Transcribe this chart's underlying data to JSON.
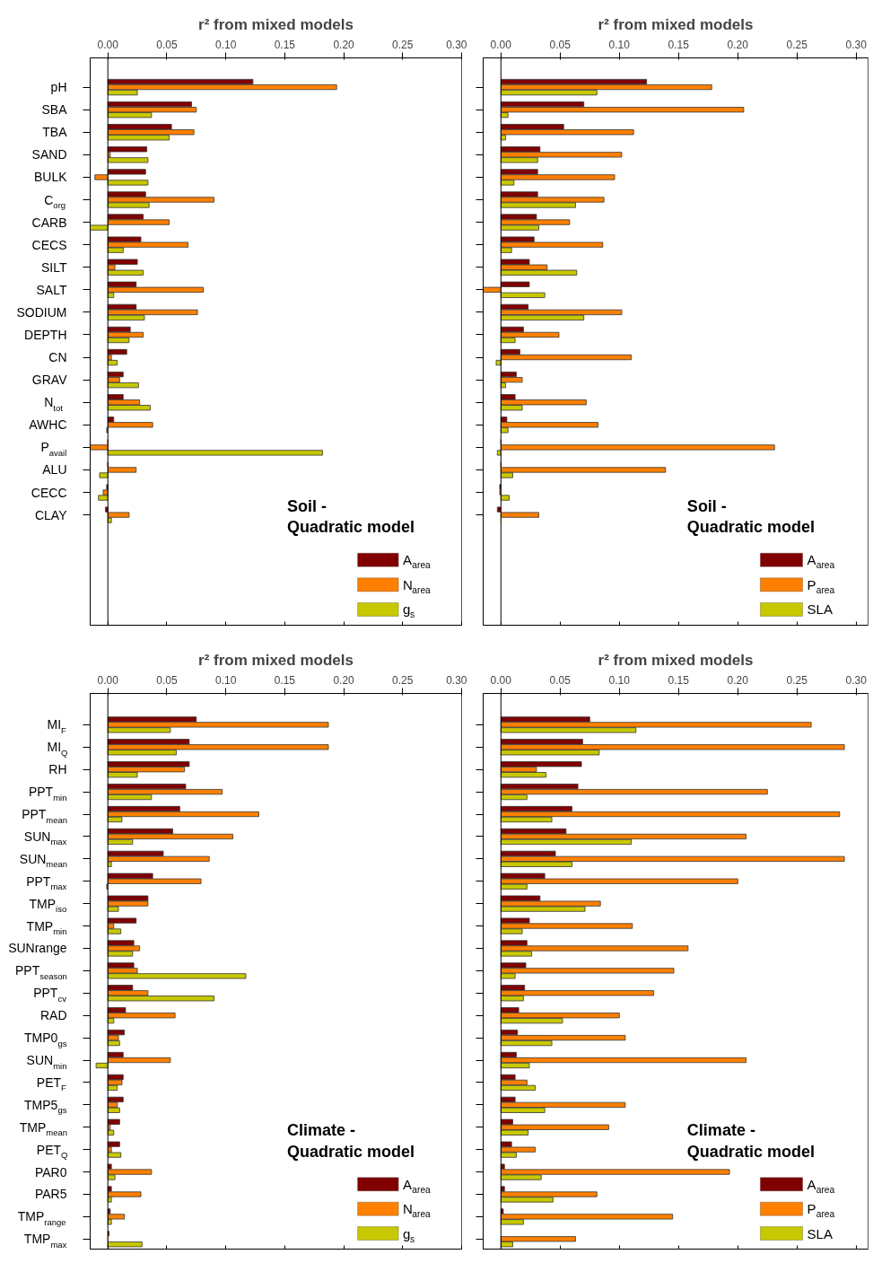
{
  "chart_data": [
    {
      "type": "bar",
      "orientation": "horizontal",
      "title": "r² from mixed models",
      "legend": "bottom right",
      "categories": [
        "pH",
        "SBA",
        "TBA",
        "SAND",
        "BULK",
        "C$_{org}$",
        "CARB",
        "CECS",
        "SILT",
        "SALT",
        "SODIUM",
        "DEPTH",
        "CN",
        "GRAV",
        "N$_{tot}$",
        "AWHC",
        "P$_{avail}$",
        "ALU",
        "CECC",
        "CLAY"
      ],
      "series": [
        {
          "name": "A$_{area}$",
          "color": "#800000",
          "values": [
            0.123,
            0.071,
            0.054,
            0.033,
            0.032,
            0.032,
            0.03,
            0.028,
            0.025,
            0.024,
            0.024,
            0.019,
            0.016,
            0.013,
            0.013,
            0.005,
            0,
            0,
            -0.001,
            -0.002
          ]
        },
        {
          "name": "N$_{area}$",
          "color": "#ff8000",
          "values": [
            0.194,
            0.075,
            0.073,
            0.002,
            -0.011,
            0.09,
            0.052,
            0.068,
            0.006,
            0.081,
            0.076,
            0.03,
            0.003,
            0.01,
            0.027,
            0.038,
            -0.015,
            0.024,
            -0.004,
            0.018
          ]
        },
        {
          "name": "g$_{s}$",
          "color": "#c8c800",
          "values": [
            0.025,
            0.037,
            0.052,
            0.034,
            0.034,
            0.035,
            -0.015,
            0.013,
            0.03,
            0.005,
            0.031,
            0.018,
            0.008,
            0.026,
            0.036,
            -0.001,
            0.182,
            -0.007,
            -0.008,
            0.003
          ]
        }
      ],
      "xlim": [
        -0.015,
        0.3
      ],
      "xticks": [
        {
          "value": 0,
          "label": "0.00"
        },
        {
          "value": 0.05,
          "label": "0.05"
        },
        {
          "value": 0.1,
          "label": "0.10"
        },
        {
          "value": 0.15,
          "label": "0.15"
        },
        {
          "value": 0.2,
          "label": "0.20"
        },
        {
          "value": 0.25,
          "label": "0.25"
        },
        {
          "value": 0.3,
          "label": "0.30"
        }
      ],
      "ref_lines": [
        {
          "axis": "x",
          "value": 0,
          "color": "#000000"
        }
      ],
      "annotations": [
        "Soil -\nQuadratic model"
      ]
    },
    {
      "type": "bar",
      "orientation": "horizontal",
      "title": "r² from mixed models",
      "legend": "bottom right",
      "tick_labels": "x",
      "categories": [
        "pH",
        "SBA",
        "TBA",
        "SAND",
        "BULK",
        "C$_{org}$",
        "CARB",
        "CECS",
        "SILT",
        "SALT",
        "SODIUM",
        "DEPTH",
        "CN",
        "GRAV",
        "N$_{tot}$",
        "AWHC",
        "P$_{avail}$",
        "ALU",
        "CECC",
        "CLAY"
      ],
      "series": [
        {
          "name": "A$_{area}$",
          "color": "#800000",
          "values": [
            0.123,
            0.07,
            0.053,
            0.033,
            0.031,
            0.031,
            0.03,
            0.028,
            0.024,
            0.024,
            0.023,
            0.019,
            0.016,
            0.013,
            0.012,
            0.005,
            0,
            0,
            -0.001,
            -0.003
          ]
        },
        {
          "name": "P$_{area}$",
          "color": "#ff8000",
          "values": [
            0.178,
            0.205,
            0.112,
            0.102,
            0.096,
            0.087,
            0.058,
            0.086,
            0.039,
            -0.015,
            0.102,
            0.049,
            0.11,
            0.018,
            0.072,
            0.082,
            0.231,
            0.139,
            -0.001,
            0.032
          ]
        },
        {
          "name": "SLA",
          "color": "#c8c800",
          "values": [
            0.081,
            0.006,
            0.004,
            0.031,
            0.011,
            0.063,
            0.032,
            0.009,
            0.064,
            0.037,
            0.07,
            0.012,
            -0.004,
            0.004,
            0.018,
            0.006,
            -0.003,
            0.01,
            0.007,
            0
          ]
        }
      ],
      "xlim": [
        -0.015,
        0.31
      ],
      "xticks": [
        {
          "value": 0,
          "label": "0.00"
        },
        {
          "value": 0.05,
          "label": "0.05"
        },
        {
          "value": 0.1,
          "label": "0.10"
        },
        {
          "value": 0.15,
          "label": "0.15"
        },
        {
          "value": 0.2,
          "label": "0.20"
        },
        {
          "value": 0.25,
          "label": "0.25"
        },
        {
          "value": 0.3,
          "label": "0.30"
        }
      ],
      "ref_lines": [
        {
          "axis": "x",
          "value": 0,
          "color": "#000000"
        }
      ],
      "annotations": [
        "Soil -\nQuadratic model"
      ]
    },
    {
      "type": "bar",
      "orientation": "horizontal",
      "title": "r² from mixed models",
      "legend": "bottom right",
      "categories": [
        "MI$_{F}$",
        "MI$_{Q}$",
        "RH",
        "PPT$_{min}$",
        "PPT$_{mean}$",
        "SUN$_{max}$",
        "SUN$_{mean}$",
        "PPT$_{max}$",
        "TMP$_{iso}$",
        "TMP$_{min}$",
        "SUNrange",
        "PPT$_{season}$",
        "PPT$_{cv}$",
        "RAD",
        "TMP0$_{gs}$",
        "SUN$_{min}$",
        "PET$_{F}$",
        "TMP5$_{gs}$",
        "TMP$_{mean}$",
        "PET$_{Q}$",
        "PAR0",
        "PAR5",
        "TMP$_{range}$",
        "TMP$_{max}$"
      ],
      "series": [
        {
          "name": "A$_{area}$",
          "color": "#800000",
          "values": [
            0.075,
            0.069,
            0.069,
            0.066,
            0.061,
            0.055,
            0.047,
            0.038,
            0.034,
            0.024,
            0.022,
            0.022,
            0.021,
            0.015,
            0.014,
            0.013,
            0.013,
            0.013,
            0.01,
            0.01,
            0.003,
            0.003,
            0.002,
            0.001
          ]
        },
        {
          "name": "N$_{area}$",
          "color": "#ff8000",
          "values": [
            0.187,
            0.187,
            0.065,
            0.097,
            0.128,
            0.106,
            0.086,
            0.079,
            0.034,
            0.005,
            0.027,
            0.025,
            0.034,
            0.057,
            0.009,
            0.053,
            0.012,
            0.008,
            0.002,
            0.003,
            0.037,
            0.028,
            0.014,
            0
          ]
        },
        {
          "name": "g$_{s}$",
          "color": "#c8c800",
          "values": [
            0.053,
            0.058,
            0.025,
            0.037,
            0.012,
            0.021,
            0.003,
            -0.001,
            0.009,
            0.011,
            0.021,
            0.117,
            0.09,
            0.005,
            0.01,
            -0.01,
            0.008,
            0.01,
            0.005,
            0.011,
            0.006,
            0.003,
            0.003,
            0.029
          ]
        }
      ],
      "xlim": [
        -0.015,
        0.3
      ],
      "xticks": [
        {
          "value": 0,
          "label": "0.00"
        },
        {
          "value": 0.05,
          "label": "0.05"
        },
        {
          "value": 0.1,
          "label": "0.10"
        },
        {
          "value": 0.15,
          "label": "0.15"
        },
        {
          "value": 0.2,
          "label": "0.20"
        },
        {
          "value": 0.25,
          "label": "0.25"
        },
        {
          "value": 0.3,
          "label": "0.30"
        }
      ],
      "ref_lines": [
        {
          "axis": "x",
          "value": 0,
          "color": "#000000"
        }
      ],
      "annotations": [
        "Climate -\nQuadratic model"
      ]
    },
    {
      "type": "bar",
      "orientation": "horizontal",
      "title": "r² from mixed models",
      "legend": "bottom right",
      "tick_labels": "x",
      "categories": [
        "MI$_{F}$",
        "MI$_{Q}$",
        "RH",
        "PPT$_{min}$",
        "PPT$_{mean}$",
        "SUN$_{max}$",
        "SUN$_{mean}$",
        "PPT$_{max}$",
        "TMP$_{iso}$",
        "TMP$_{min}$",
        "SUNrange",
        "PPT$_{season}$",
        "PPT$_{cv}$",
        "RAD",
        "TMP0$_{gs}$",
        "SUN$_{min}$",
        "PET$_{F}$",
        "TMP5$_{gs}$",
        "TMP$_{mean}$",
        "PET$_{Q}$",
        "PAR0",
        "PAR5",
        "TMP$_{range}$",
        "TMP$_{max}$"
      ],
      "series": [
        {
          "name": "A$_{area}$",
          "color": "#800000",
          "values": [
            0.075,
            0.069,
            0.068,
            0.065,
            0.06,
            0.055,
            0.046,
            0.037,
            0.033,
            0.024,
            0.022,
            0.021,
            0.02,
            0.015,
            0.014,
            0.013,
            0.012,
            0.012,
            0.01,
            0.009,
            0.003,
            0.003,
            0.002,
            null
          ]
        },
        {
          "name": "P$_{area}$",
          "color": "#ff8000",
          "values": [
            0.262,
            0.29,
            0.03,
            0.225,
            0.286,
            0.207,
            0.29,
            0.2,
            0.084,
            0.111,
            0.158,
            0.146,
            0.129,
            0.1,
            0.105,
            0.207,
            0.022,
            0.105,
            0.091,
            0.029,
            0.193,
            0.081,
            0.145,
            0.063
          ]
        },
        {
          "name": "SLA",
          "color": "#c8c800",
          "values": [
            0.114,
            0.083,
            0.038,
            0.022,
            0.043,
            0.11,
            0.06,
            0.022,
            0.071,
            0.018,
            0.026,
            0.012,
            0.019,
            0.052,
            0.043,
            0.024,
            0.029,
            0.037,
            0.023,
            0.013,
            0.034,
            0.044,
            0.019,
            0.01
          ]
        }
      ],
      "xlim": [
        -0.015,
        0.31
      ],
      "xticks": [
        {
          "value": 0,
          "label": "0.00"
        },
        {
          "value": 0.05,
          "label": "0.05"
        },
        {
          "value": 0.1,
          "label": "0.10"
        },
        {
          "value": 0.15,
          "label": "0.15"
        },
        {
          "value": 0.2,
          "label": "0.20"
        },
        {
          "value": 0.25,
          "label": "0.25"
        },
        {
          "value": 0.3,
          "label": "0.30"
        }
      ],
      "ref_lines": [
        {
          "axis": "x",
          "value": 0,
          "color": "#000000"
        }
      ],
      "annotations": [
        "Climate -\nQuadratic model"
      ]
    }
  ]
}
